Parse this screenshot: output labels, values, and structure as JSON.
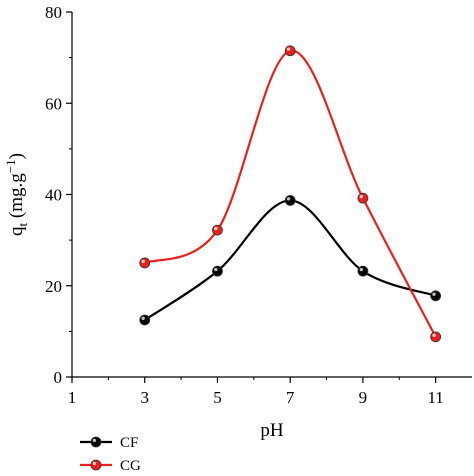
{
  "chart_data": {
    "type": "line",
    "xlabel": "pH",
    "ylabel": {
      "main": "q",
      "sub": "t",
      "unit_prefix": " (mg.g",
      "sup": "−1",
      "unit_suffix": ")"
    },
    "xlim": [
      1,
      12
    ],
    "ylim": [
      0,
      80
    ],
    "xticks": [
      1,
      3,
      5,
      7,
      9,
      11
    ],
    "yticks": [
      0,
      20,
      40,
      60,
      80
    ],
    "x": [
      3,
      5,
      7,
      9,
      11
    ],
    "series": [
      {
        "name": "CF",
        "color": "#000000",
        "marker_fill": "#000000",
        "values": [
          12.5,
          23.2,
          38.7,
          23.2,
          17.8
        ]
      },
      {
        "name": "CG",
        "color": "#e8201e",
        "marker_fill": "#e8201e",
        "values": [
          25.0,
          32.2,
          71.5,
          39.2,
          8.8
        ]
      }
    ],
    "legend": "bottom-left, below axes",
    "grid": false,
    "smooth": true
  }
}
